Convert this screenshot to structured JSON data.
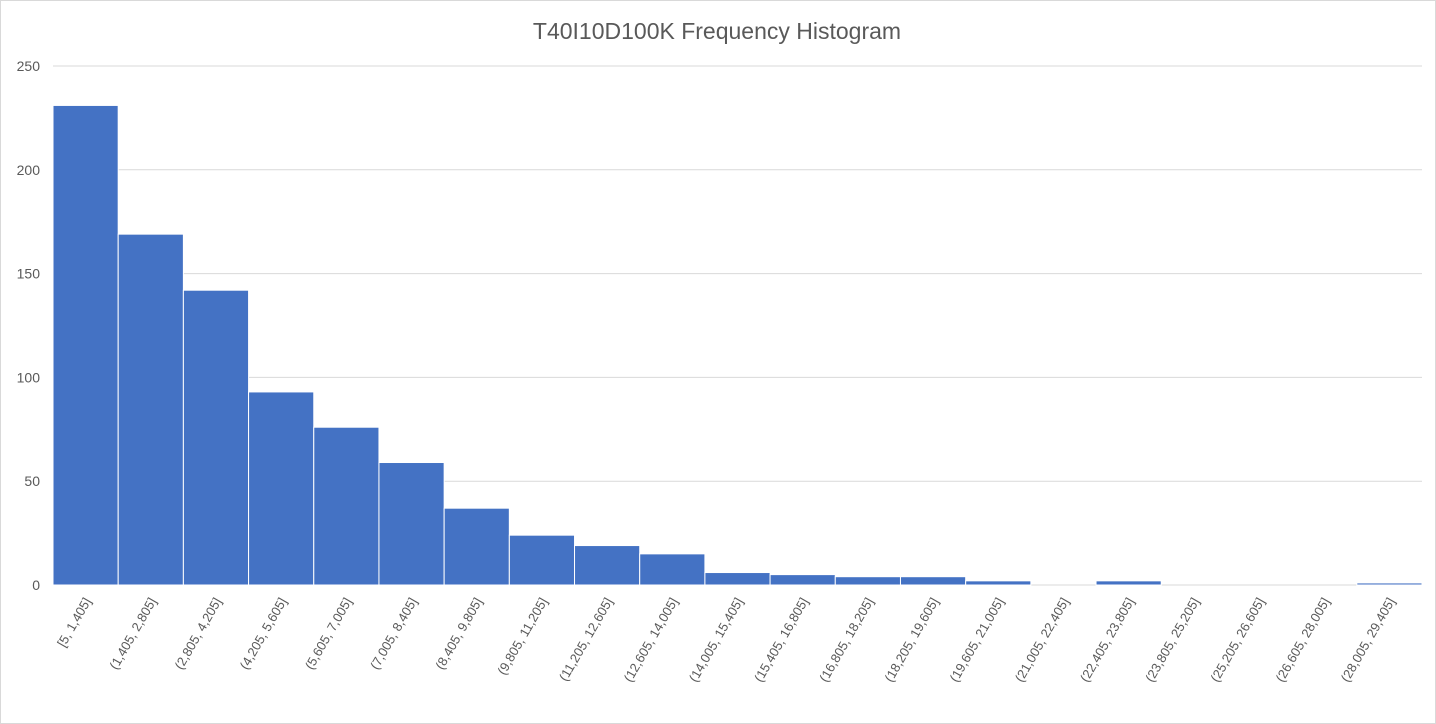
{
  "chart_data": {
    "type": "bar",
    "title": "T40I10D100K Frequency Histogram",
    "xlabel": "",
    "ylabel": "",
    "ylim": [
      0,
      250
    ],
    "yticks": [
      0,
      50,
      100,
      150,
      200,
      250
    ],
    "grid": true,
    "legend": "none",
    "bar_color": "#4472C4",
    "categories": [
      "[5, 1,405]",
      "(1,405, 2,805]",
      "(2,805, 4,205]",
      "(4,205, 5,605]",
      "(5,605, 7,005]",
      "(7,005, 8,405]",
      "(8,405, 9,805]",
      "(9,805, 11,205]",
      "(11,205, 12,605]",
      "(12,605, 14,005]",
      "(14,005, 15,405]",
      "(15,405, 16,805]",
      "(16,805, 18,205]",
      "(18,205, 19,605]",
      "(19,605, 21,005]",
      "(21,005, 22,405]",
      "(22,405, 23,805]",
      "(23,805, 25,205]",
      "(25,205, 26,605]",
      "(26,605, 28,005]",
      "(28,005, 29,405]"
    ],
    "values": [
      231,
      169,
      142,
      93,
      76,
      59,
      37,
      24,
      19,
      15,
      6,
      5,
      4,
      4,
      2,
      0,
      2,
      0,
      0,
      0,
      1
    ]
  }
}
